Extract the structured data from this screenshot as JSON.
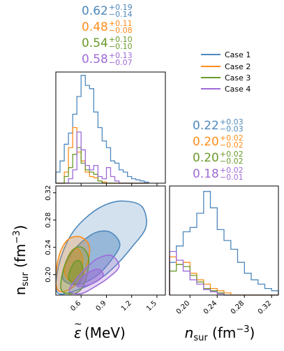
{
  "colors": {
    "case1": "#4e88bd",
    "case2": "#ff8c1a",
    "case3": "#6b9a2a",
    "case4": "#9e6bd8"
  },
  "legend": {
    "placement": "top-right",
    "items": [
      "Case 1",
      "Case 2",
      "Case 3",
      "Case 4"
    ]
  },
  "annotations_eps": [
    {
      "median": "0.62",
      "plus": "+0.19",
      "minus": "−0.14"
    },
    {
      "median": "0.48",
      "plus": "+0.11",
      "minus": "−0.08"
    },
    {
      "median": "0.54",
      "plus": "+0.10",
      "minus": "−0.10"
    },
    {
      "median": "0.58",
      "plus": "+0.13",
      "minus": "−0.07"
    }
  ],
  "annotations_nsur": [
    {
      "median": "0.22",
      "plus": "+0.03",
      "minus": "−0.03"
    },
    {
      "median": "0.20",
      "plus": "+0.02",
      "minus": "−0.02"
    },
    {
      "median": "0.20",
      "plus": "+0.02",
      "minus": "−0.02"
    },
    {
      "median": "0.18",
      "plus": "+0.02",
      "minus": "−0.01"
    }
  ],
  "chart_data": [
    {
      "type": "histogram",
      "panel": "top-left",
      "xlim": [
        0.3,
        1.6
      ],
      "bin_edges": [
        0.3,
        0.35,
        0.4,
        0.45,
        0.5,
        0.55,
        0.6,
        0.65,
        0.7,
        0.75,
        0.8,
        0.85,
        0.9,
        0.95,
        1.0,
        1.05,
        1.1,
        1.15,
        1.2,
        1.25,
        1.3,
        1.35,
        1.4
      ],
      "series": [
        {
          "name": "Case 1",
          "values": [
            0.1,
            0.2,
            0.35,
            0.45,
            0.62,
            0.78,
            0.97,
            0.88,
            0.85,
            0.64,
            0.5,
            0.38,
            0.32,
            0.2,
            0.18,
            0.12,
            0.1,
            0.06,
            0.04,
            0.03,
            0.02,
            0.01
          ]
        },
        {
          "name": "Case 2",
          "values": [
            0.0,
            0.0,
            0.1,
            0.32,
            0.5,
            0.28,
            0.2,
            0.1,
            0.06,
            0.05,
            0.02,
            0.01,
            0.0,
            0.0,
            0.0,
            0.0,
            0.0,
            0.0,
            0.0,
            0.0,
            0.0,
            0.0
          ]
        },
        {
          "name": "Case 3",
          "values": [
            0.0,
            0.0,
            0.06,
            0.14,
            0.26,
            0.32,
            0.18,
            0.12,
            0.1,
            0.08,
            0.02,
            0.0,
            0.0,
            0.0,
            0.0,
            0.0,
            0.0,
            0.0,
            0.0,
            0.0,
            0.0,
            0.0
          ]
        },
        {
          "name": "Case 4",
          "values": [
            0.0,
            0.0,
            0.0,
            0.04,
            0.12,
            0.46,
            0.3,
            0.16,
            0.12,
            0.16,
            0.06,
            0.04,
            0.14,
            0.06,
            0.02,
            0.0,
            0.0,
            0.0,
            0.0,
            0.0,
            0.0,
            0.0
          ]
        }
      ]
    },
    {
      "type": "contour",
      "panel": "bottom-left",
      "xlabel": "ε̃ (MeV)",
      "ylabel": "n_sur (fm⁻³)",
      "xlim": [
        0.3,
        1.6
      ],
      "ylim": [
        0.17,
        0.33
      ],
      "xticks": [
        0.6,
        0.9,
        1.2,
        1.5
      ],
      "xtick_labels": [
        "0.6",
        "0.9",
        "1.2",
        "1.5"
      ],
      "yticks": [
        0.2,
        0.24,
        0.28,
        0.32
      ],
      "ytick_labels": [
        "0.20",
        "0.24",
        "0.28",
        "0.32"
      ],
      "series": [
        {
          "name": "Case 1",
          "levels": [
            [
              [
                0.3,
                0.187
              ],
              [
                0.36,
                0.225
              ],
              [
                0.5,
                0.262
              ],
              [
                0.7,
                0.288
              ],
              [
                0.9,
                0.303
              ],
              [
                1.1,
                0.308
              ],
              [
                1.32,
                0.3
              ],
              [
                1.37,
                0.27
              ],
              [
                1.2,
                0.24
              ],
              [
                1.0,
                0.212
              ],
              [
                0.78,
                0.19
              ],
              [
                0.52,
                0.176
              ],
              [
                0.34,
                0.172
              ]
            ],
            [
              [
                0.38,
                0.195
              ],
              [
                0.46,
                0.226
              ],
              [
                0.6,
                0.247
              ],
              [
                0.78,
                0.262
              ],
              [
                0.95,
                0.262
              ],
              [
                1.06,
                0.244
              ],
              [
                0.95,
                0.22
              ],
              [
                0.78,
                0.198
              ],
              [
                0.55,
                0.185
              ]
            ]
          ]
        },
        {
          "name": "Case 2",
          "levels": [
            [
              [
                0.3,
                0.2
              ],
              [
                0.35,
                0.232
              ],
              [
                0.45,
                0.252
              ],
              [
                0.6,
                0.255
              ],
              [
                0.7,
                0.24
              ],
              [
                0.66,
                0.21
              ],
              [
                0.56,
                0.188
              ],
              [
                0.42,
                0.176
              ],
              [
                0.32,
                0.178
              ]
            ],
            [
              [
                0.4,
                0.205
              ],
              [
                0.47,
                0.232
              ],
              [
                0.56,
                0.238
              ],
              [
                0.62,
                0.222
              ],
              [
                0.58,
                0.2
              ],
              [
                0.48,
                0.19
              ]
            ]
          ]
        },
        {
          "name": "Case 3",
          "levels": [
            [
              [
                0.36,
                0.18
              ],
              [
                0.4,
                0.212
              ],
              [
                0.5,
                0.236
              ],
              [
                0.61,
                0.24
              ],
              [
                0.69,
                0.224
              ],
              [
                0.66,
                0.195
              ],
              [
                0.58,
                0.176
              ],
              [
                0.45,
                0.172
              ]
            ],
            [
              [
                0.45,
                0.195
              ],
              [
                0.52,
                0.218
              ],
              [
                0.6,
                0.218
              ],
              [
                0.62,
                0.198
              ],
              [
                0.55,
                0.186
              ]
            ]
          ]
        },
        {
          "name": "Case 4",
          "levels": [
            [
              [
                0.46,
                0.176
              ],
              [
                0.55,
                0.195
              ],
              [
                0.68,
                0.212
              ],
              [
                0.8,
                0.224
              ],
              [
                0.96,
                0.228
              ],
              [
                1.05,
                0.212
              ],
              [
                0.92,
                0.195
              ],
              [
                0.76,
                0.182
              ],
              [
                0.6,
                0.172
              ]
            ],
            [
              [
                0.55,
                0.183
              ],
              [
                0.65,
                0.2
              ],
              [
                0.8,
                0.208
              ],
              [
                0.86,
                0.198
              ],
              [
                0.72,
                0.186
              ]
            ]
          ]
        }
      ]
    },
    {
      "type": "histogram",
      "panel": "bottom-right",
      "xlabel": "n_sur (fm⁻³)",
      "xlim": [
        0.17,
        0.33
      ],
      "xticks": [
        0.2,
        0.24,
        0.28,
        0.32
      ],
      "xtick_labels": [
        "0.20",
        "0.24",
        "0.28",
        "0.32"
      ],
      "bin_edges": [
        0.17,
        0.18,
        0.19,
        0.2,
        0.21,
        0.22,
        0.23,
        0.24,
        0.25,
        0.26,
        0.27,
        0.28,
        0.29,
        0.3,
        0.31,
        0.32,
        0.33
      ],
      "series": [
        {
          "name": "Case 1",
          "values": [
            0.3,
            0.45,
            0.58,
            0.62,
            0.75,
            0.95,
            0.8,
            0.6,
            0.5,
            0.42,
            0.3,
            0.2,
            0.14,
            0.1,
            0.06,
            0.04
          ]
        },
        {
          "name": "Case 2",
          "values": [
            0.35,
            0.28,
            0.3,
            0.2,
            0.14,
            0.1,
            0.06,
            0.04,
            0.02,
            0.0,
            0.0,
            0.0,
            0.0,
            0.0,
            0.0,
            0.0
          ]
        },
        {
          "name": "Case 3",
          "values": [
            0.22,
            0.28,
            0.26,
            0.18,
            0.12,
            0.06,
            0.04,
            0.02,
            0.0,
            0.0,
            0.0,
            0.0,
            0.0,
            0.0,
            0.0,
            0.0
          ]
        },
        {
          "name": "Case 4",
          "values": [
            0.4,
            0.32,
            0.22,
            0.14,
            0.1,
            0.05,
            0.03,
            0.01,
            0.0,
            0.0,
            0.0,
            0.0,
            0.0,
            0.0,
            0.0,
            0.0
          ]
        }
      ]
    }
  ]
}
